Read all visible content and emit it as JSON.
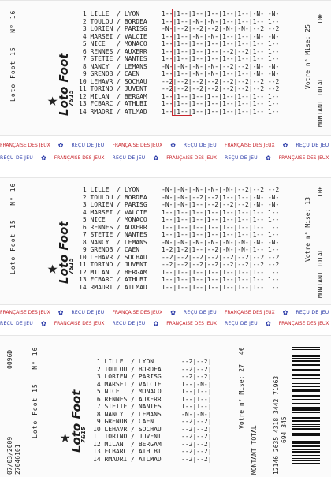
{
  "brand": {
    "logo": "Loto Foot",
    "logo_sub": "7&15"
  },
  "game_label": "Loto Foot 15",
  "grid_number": "N° 16",
  "total_label": "MONTANT TOTAL",
  "stake_label": "Votre n° Mise:",
  "band_ecu": "REÇU DE JEU",
  "band_fdj": "FRANÇAISE DES JEUX",
  "matches": [
    {
      "n": "1",
      "home": "LILLE",
      "away": "LYON"
    },
    {
      "n": "2",
      "home": "TOULOU",
      "away": "BORDEA"
    },
    {
      "n": "3",
      "home": "LORIEN",
      "away": "PARISG"
    },
    {
      "n": "4",
      "home": "MARSEI",
      "away": "VALCIE"
    },
    {
      "n": "5",
      "home": "NICE",
      "away": "MONACO"
    },
    {
      "n": "6",
      "home": "RENNES",
      "away": "AUXERR"
    },
    {
      "n": "7",
      "home": "STETIE",
      "away": "NANTES"
    },
    {
      "n": "8",
      "home": "NANCY",
      "away": "LEMANS"
    },
    {
      "n": "9",
      "home": "GRENOB",
      "away": "CAEN"
    },
    {
      "n": "10",
      "home": "LEHAVR",
      "away": "SOCHAU"
    },
    {
      "n": "11",
      "home": "TORINO",
      "away": "JUVENT"
    },
    {
      "n": "12",
      "home": "MILAN",
      "away": "BERGAM"
    },
    {
      "n": "13",
      "home": "FCBARC",
      "away": "ATHLBI"
    },
    {
      "n": "14",
      "home": "RMADRI",
      "away": "ATLMAD"
    }
  ],
  "tickets": [
    {
      "price": "10€",
      "stake": "25",
      "grid": [
        "1--|1--|1--|1--|1--|1--|-N-|-N-|",
        "1--|1--|-N-|-N-|1--|1--|1--|1--|",
        "-N-|--2|--2|--2|-N-|-N-|--2|--2|",
        "1--|1--|-N-|-N-|1--|1--|-N-|-N-|",
        "1--|1--|1--|1--|1--|1--|1--|1--|",
        "1--|1--|1--|1--|--2|--2|1--|1--|",
        "1--|1--|1--|1--|1--|1--|1--|1--|",
        "-N-|-N-|-N-|-N-|--2|--2|-N-|-N-|",
        "1--|1--|-N-|-N-|1--|1--|-N-|-N-|",
        "--2|--2|--2|--2|--2|--2|--2|--2|",
        "--2|--2|--2|--2|--2|--2|--2|--2|",
        "1--|1--|1--|1--|1--|1--|1--|1--|",
        "1--|1--|1--|1--|1--|1--|1--|1--|",
        "1--|1--|1--|1--|1--|1--|1--|1--|"
      ]
    },
    {
      "price": "10€",
      "stake": "13",
      "grid": [
        "-N-|-N-|-N-|-N-|-N-|--2|--2|--2|",
        "-N-|-N-|--2|--2|1--|1--|-N-|-N-|",
        "-N-|-N-|1--|--2|--2|--2|-N-|-N-|",
        "1--|1--|1--|1--|1--|1--|1--|1--|",
        "1--|1--|1--|1--|1--|1--|1--|1--|",
        "1--|1--|1--|1--|1--|1--|1--|1--|",
        "1--|1--|1--|1--|1--|1--|1--|1--|",
        "-N-|-N-|-N-|-N-|-N-|-N-|-N-|-N-|",
        "1-2|1-2|1--|--2|-N-|-N-|1--|1--|",
        "--2|--2|--2|--2|--2|--2|--2|--2|",
        "--2|--2|--2|--2|--2|--2|--2|--2|",
        "1--|1--|1--|1--|1--|1--|1--|1--|",
        "1--|1--|1--|1--|1--|1--|1--|1--|",
        "1--|1--|1--|1--|1--|1--|1--|1--|"
      ]
    },
    {
      "price": "4€",
      "stake": "27",
      "date": "07/03/2009",
      "code_top": "0096D",
      "code_bottom": "27046101",
      "grid": [
        "--2|--2|",
        "--2|--2|",
        "--2|--2|",
        "1--|-N-|",
        "1--|1--|",
        "1--|1--|",
        "1--|1--|",
        "-N-|-N-|",
        "--2|--2|",
        "--2|--2|",
        "--2|--2|",
        "--2|--2|",
        "--2|--2|",
        "--2|--2|"
      ],
      "serial_line1": "12146 2635 4318 3442 71963",
      "serial_line2": "694 345"
    }
  ]
}
